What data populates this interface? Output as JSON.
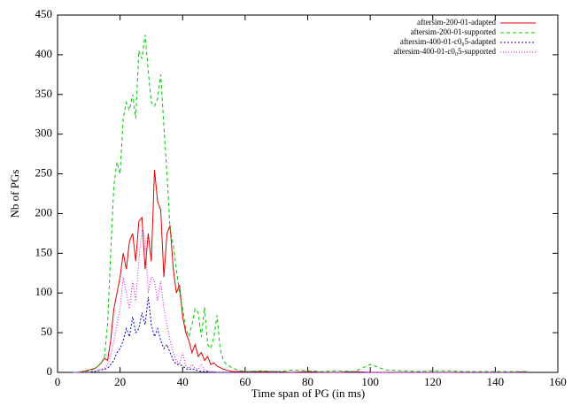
{
  "chart_data": {
    "type": "line",
    "xlabel": "Time span of PG (in ms)",
    "ylabel": "Nb of PGs",
    "x": [
      5,
      6,
      7,
      8,
      9,
      10,
      11,
      12,
      13,
      14,
      15,
      16,
      17,
      18,
      19,
      20,
      21,
      22,
      23,
      24,
      25,
      26,
      27,
      28,
      29,
      30,
      31,
      32,
      33,
      34,
      35,
      36,
      37,
      38,
      39,
      40,
      41,
      42,
      43,
      44,
      45,
      46,
      47,
      48,
      49,
      50,
      51,
      52,
      53,
      54,
      55,
      56,
      57,
      58,
      59,
      60,
      65,
      70,
      75,
      80,
      85,
      90,
      95,
      100,
      105,
      110,
      115,
      120,
      125,
      130,
      135,
      140,
      145,
      150
    ],
    "series": [
      {
        "name": "aftersim-200-01-adapted",
        "color": "#e00000",
        "dash": "none",
        "values": [
          0,
          0,
          0,
          1,
          2,
          3,
          4,
          5,
          8,
          12,
          18,
          15,
          40,
          80,
          100,
          120,
          150,
          130,
          165,
          175,
          140,
          190,
          195,
          130,
          175,
          140,
          255,
          215,
          205,
          120,
          175,
          185,
          130,
          100,
          110,
          70,
          50,
          40,
          25,
          35,
          20,
          25,
          15,
          20,
          10,
          12,
          8,
          6,
          4,
          3,
          2,
          1,
          1,
          1,
          1,
          1,
          1,
          1,
          0,
          1,
          0,
          0,
          1,
          0,
          0,
          0,
          0,
          0,
          0,
          0,
          0,
          0,
          0,
          1
        ]
      },
      {
        "name": "aftersim-200-01-supported",
        "color": "#00c800",
        "dash": "4 3",
        "values": [
          0,
          0,
          1,
          1,
          1,
          2,
          3,
          5,
          8,
          12,
          20,
          60,
          150,
          235,
          265,
          250,
          320,
          340,
          330,
          350,
          320,
          405,
          395,
          425,
          380,
          340,
          335,
          345,
          375,
          310,
          250,
          180,
          160,
          130,
          100,
          80,
          55,
          45,
          60,
          80,
          75,
          45,
          82,
          35,
          30,
          45,
          72,
          30,
          15,
          10,
          8,
          5,
          4,
          2,
          2,
          1,
          2,
          1,
          3,
          2,
          1,
          2,
          1,
          10,
          3,
          2,
          1,
          2,
          2,
          1,
          1,
          1,
          1,
          1
        ]
      },
      {
        "name": "aftersim-400-01-c0₀5-adapted",
        "color": "#0000c0",
        "dash": "2 2",
        "values": [
          0,
          0,
          0,
          0,
          0,
          0,
          1,
          1,
          2,
          3,
          4,
          5,
          10,
          15,
          25,
          30,
          40,
          55,
          45,
          70,
          50,
          55,
          75,
          60,
          95,
          60,
          45,
          55,
          40,
          30,
          35,
          25,
          15,
          10,
          10,
          8,
          5,
          3,
          5,
          3,
          2,
          1,
          1,
          1,
          0,
          0,
          0,
          0,
          0,
          0,
          0,
          0,
          0,
          0,
          0,
          0,
          0,
          0,
          0,
          0,
          0,
          0,
          0,
          0,
          0,
          0,
          0,
          0,
          0,
          0,
          0,
          0,
          0,
          0
        ]
      },
      {
        "name": "aftersim-400-01-c0₀5-supported",
        "color": "#e000e0",
        "dash": "1 2",
        "values": [
          0,
          0,
          0,
          0,
          0,
          0,
          1,
          2,
          3,
          4,
          5,
          10,
          20,
          40,
          60,
          80,
          120,
          100,
          80,
          115,
          90,
          140,
          180,
          170,
          100,
          120,
          115,
          90,
          115,
          80,
          60,
          40,
          25,
          15,
          10,
          25,
          8,
          5,
          10,
          5,
          4,
          10,
          3,
          2,
          1,
          1,
          0,
          0,
          0,
          0,
          0,
          0,
          0,
          0,
          0,
          0,
          0,
          0,
          0,
          0,
          0,
          0,
          0,
          0,
          0,
          0,
          0,
          0,
          0,
          0,
          0,
          0,
          0,
          0
        ]
      }
    ],
    "xlim": [
      0,
      160
    ],
    "xticks": [
      0,
      20,
      40,
      60,
      80,
      100,
      120,
      140,
      160
    ],
    "ylim": [
      0,
      450
    ],
    "yticks": [
      0,
      50,
      100,
      150,
      200,
      250,
      300,
      350,
      400,
      450
    ],
    "legend": "upper right"
  }
}
